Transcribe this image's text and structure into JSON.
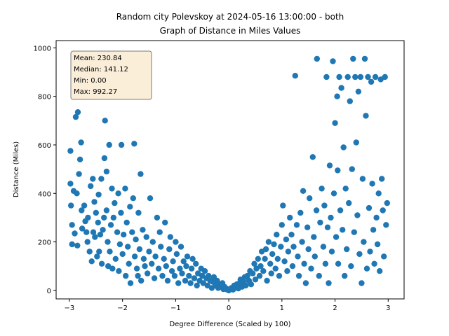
{
  "chart_data": {
    "type": "scatter",
    "title_line1": "Random city Polevskoy at 2024-05-16 13:00:00  - both",
    "title_line2": "Graph of Distance in Miles Values",
    "xlabel": "Degree Difference (Scaled by 100)",
    "ylabel": "Distance (Miles)",
    "xlim": [
      -3.25,
      3.3
    ],
    "ylim": [
      -35,
      1030
    ],
    "x_ticks": [
      -3,
      -2,
      -1,
      0,
      1,
      2,
      3
    ],
    "y_ticks": [
      0,
      200,
      400,
      600,
      800,
      1000
    ],
    "grid": false,
    "point_color": "#1f77b4",
    "stats_box": {
      "mean": "Mean: 230.84",
      "median": "Median: 141.12",
      "min": "Min: 0.00",
      "max": "Max: 992.27",
      "background": "#f5deb3",
      "placement": "top-left"
    },
    "points": [
      [
        -2.98,
        575
      ],
      [
        -2.98,
        440
      ],
      [
        -2.97,
        350
      ],
      [
        -2.95,
        270
      ],
      [
        -2.95,
        190
      ],
      [
        -2.92,
        410
      ],
      [
        -2.9,
        235
      ],
      [
        -2.88,
        715
      ],
      [
        -2.86,
        400
      ],
      [
        -2.85,
        185
      ],
      [
        -2.84,
        735
      ],
      [
        -2.82,
        480
      ],
      [
        -2.8,
        540
      ],
      [
        -2.78,
        610
      ],
      [
        -2.77,
        330
      ],
      [
        -2.76,
        255
      ],
      [
        -2.72,
        350
      ],
      [
        -2.7,
        285
      ],
      [
        -2.68,
        240
      ],
      [
        -2.66,
        200
      ],
      [
        -2.65,
        300
      ],
      [
        -2.62,
        160
      ],
      [
        -2.6,
        430
      ],
      [
        -2.58,
        120
      ],
      [
        -2.56,
        460
      ],
      [
        -2.55,
        240
      ],
      [
        -2.53,
        365
      ],
      [
        -2.52,
        220
      ],
      [
        -2.5,
        320
      ],
      [
        -2.48,
        140
      ],
      [
        -2.46,
        280
      ],
      [
        -2.45,
        395
      ],
      [
        -2.44,
        160
      ],
      [
        -2.42,
        230
      ],
      [
        -2.4,
        460
      ],
      [
        -2.39,
        110
      ],
      [
        -2.37,
        250
      ],
      [
        -2.35,
        300
      ],
      [
        -2.34,
        545
      ],
      [
        -2.33,
        700
      ],
      [
        -2.3,
        490
      ],
      [
        -2.3,
        330
      ],
      [
        -2.28,
        200
      ],
      [
        -2.27,
        100
      ],
      [
        -2.25,
        600
      ],
      [
        -2.24,
        160
      ],
      [
        -2.22,
        270
      ],
      [
        -2.2,
        420
      ],
      [
        -2.19,
        90
      ],
      [
        -2.17,
        300
      ],
      [
        -2.15,
        360
      ],
      [
        -2.13,
        130
      ],
      [
        -2.1,
        240
      ],
      [
        -2.08,
        400
      ],
      [
        -2.07,
        80
      ],
      [
        -2.05,
        190
      ],
      [
        -2.03,
        320
      ],
      [
        -2.02,
        600
      ],
      [
        -2.0,
        150
      ],
      [
        -1.98,
        230
      ],
      [
        -1.95,
        420
      ],
      [
        -1.94,
        60
      ],
      [
        -1.92,
        280
      ],
      [
        -1.9,
        180
      ],
      [
        -1.88,
        110
      ],
      [
        -1.86,
        345
      ],
      [
        -1.85,
        30
      ],
      [
        -1.82,
        240
      ],
      [
        -1.8,
        380
      ],
      [
        -1.78,
        605
      ],
      [
        -1.77,
        140
      ],
      [
        -1.75,
        210
      ],
      [
        -1.73,
        90
      ],
      [
        -1.71,
        60
      ],
      [
        -1.7,
        320
      ],
      [
        -1.68,
        170
      ],
      [
        -1.66,
        480
      ],
      [
        -1.65,
        40
      ],
      [
        -1.62,
        250
      ],
      [
        -1.6,
        130
      ],
      [
        -1.58,
        100
      ],
      [
        -1.55,
        220
      ],
      [
        -1.53,
        70
      ],
      [
        -1.5,
        160
      ],
      [
        -1.48,
        380
      ],
      [
        -1.45,
        110
      ],
      [
        -1.43,
        200
      ],
      [
        -1.4,
        50
      ],
      [
        -1.38,
        140
      ],
      [
        -1.35,
        300
      ],
      [
        -1.32,
        90
      ],
      [
        -1.3,
        240
      ],
      [
        -1.28,
        180
      ],
      [
        -1.25,
        60
      ],
      [
        -1.22,
        130
      ],
      [
        -1.2,
        280
      ],
      [
        -1.18,
        100
      ],
      [
        -1.15,
        40
      ],
      [
        -1.12,
        170
      ],
      [
        -1.1,
        220
      ],
      [
        -1.07,
        80
      ],
      [
        -1.05,
        120
      ],
      [
        -1.02,
        60
      ],
      [
        -1.0,
        200
      ],
      [
        -0.98,
        150
      ],
      [
        -0.95,
        30
      ],
      [
        -0.92,
        90
      ],
      [
        -0.9,
        180
      ],
      [
        -0.88,
        70
      ],
      [
        -0.85,
        120
      ],
      [
        -0.82,
        40
      ],
      [
        -0.8,
        100
      ],
      [
        -0.78,
        140
      ],
      [
        -0.75,
        60
      ],
      [
        -0.72,
        30
      ],
      [
        -0.7,
        90
      ],
      [
        -0.68,
        130
      ],
      [
        -0.65,
        50
      ],
      [
        -0.62,
        110
      ],
      [
        -0.6,
        20
      ],
      [
        -0.58,
        70
      ],
      [
        -0.55,
        40
      ],
      [
        -0.52,
        90
      ],
      [
        -0.5,
        60
      ],
      [
        -0.48,
        30
      ],
      [
        -0.45,
        80
      ],
      [
        -0.42,
        50
      ],
      [
        -0.4,
        20
      ],
      [
        -0.38,
        60
      ],
      [
        -0.35,
        40
      ],
      [
        -0.32,
        10
      ],
      [
        -0.3,
        35
      ],
      [
        -0.28,
        55
      ],
      [
        -0.25,
        20
      ],
      [
        -0.22,
        40
      ],
      [
        -0.2,
        10
      ],
      [
        -0.18,
        25
      ],
      [
        -0.15,
        15
      ],
      [
        -0.12,
        30
      ],
      [
        -0.1,
        5
      ],
      [
        -0.08,
        15
      ],
      [
        -0.05,
        8
      ],
      [
        -0.03,
        3
      ],
      [
        0.0,
        0
      ],
      [
        0.02,
        5
      ],
      [
        0.05,
        10
      ],
      [
        0.08,
        3
      ],
      [
        0.1,
        20
      ],
      [
        0.12,
        12
      ],
      [
        0.15,
        25
      ],
      [
        0.18,
        8
      ],
      [
        0.2,
        30
      ],
      [
        0.22,
        45
      ],
      [
        0.25,
        15
      ],
      [
        0.28,
        35
      ],
      [
        0.3,
        55
      ],
      [
        0.32,
        20
      ],
      [
        0.35,
        60
      ],
      [
        0.38,
        40
      ],
      [
        0.4,
        80
      ],
      [
        0.42,
        25
      ],
      [
        0.45,
        70
      ],
      [
        0.48,
        110
      ],
      [
        0.5,
        45
      ],
      [
        0.52,
        90
      ],
      [
        0.55,
        130
      ],
      [
        0.58,
        60
      ],
      [
        0.6,
        100
      ],
      [
        0.62,
        160
      ],
      [
        0.65,
        80
      ],
      [
        0.68,
        130
      ],
      [
        0.7,
        170
      ],
      [
        0.72,
        40
      ],
      [
        0.75,
        200
      ],
      [
        0.78,
        110
      ],
      [
        0.8,
        70
      ],
      [
        0.82,
        150
      ],
      [
        0.85,
        190
      ],
      [
        0.88,
        90
      ],
      [
        0.9,
        230
      ],
      [
        0.92,
        130
      ],
      [
        0.95,
        60
      ],
      [
        0.98,
        180
      ],
      [
        1.0,
        270
      ],
      [
        1.02,
        350
      ],
      [
        1.05,
        120
      ],
      [
        1.08,
        210
      ],
      [
        1.1,
        80
      ],
      [
        1.12,
        160
      ],
      [
        1.15,
        300
      ],
      [
        1.18,
        230
      ],
      [
        1.2,
        100
      ],
      [
        1.22,
        180
      ],
      [
        1.25,
        885
      ],
      [
        1.28,
        270
      ],
      [
        1.3,
        140
      ],
      [
        1.32,
        60
      ],
      [
        1.35,
        320
      ],
      [
        1.38,
        200
      ],
      [
        1.4,
        410
      ],
      [
        1.42,
        110
      ],
      [
        1.45,
        30
      ],
      [
        1.48,
        260
      ],
      [
        1.5,
        170
      ],
      [
        1.52,
        380
      ],
      [
        1.55,
        90
      ],
      [
        1.58,
        550
      ],
      [
        1.6,
        220
      ],
      [
        1.62,
        140
      ],
      [
        1.65,
        330
      ],
      [
        1.66,
        955
      ],
      [
        1.7,
        60
      ],
      [
        1.72,
        280
      ],
      [
        1.75,
        420
      ],
      [
        1.78,
        180
      ],
      [
        1.8,
        350
      ],
      [
        1.82,
        110
      ],
      [
        1.84,
        880
      ],
      [
        1.86,
        260
      ],
      [
        1.88,
        30
      ],
      [
        1.9,
        515
      ],
      [
        1.92,
        300
      ],
      [
        1.94,
        160
      ],
      [
        1.96,
        945
      ],
      [
        1.98,
        400
      ],
      [
        2.0,
        690
      ],
      [
        2.02,
        220
      ],
      [
        2.04,
        800
      ],
      [
        2.05,
        495
      ],
      [
        2.06,
        110
      ],
      [
        2.08,
        880
      ],
      [
        2.1,
        330
      ],
      [
        2.12,
        835
      ],
      [
        2.14,
        250
      ],
      [
        2.16,
        590
      ],
      [
        2.18,
        60
      ],
      [
        2.2,
        420
      ],
      [
        2.22,
        170
      ],
      [
        2.24,
        880
      ],
      [
        2.26,
        360
      ],
      [
        2.28,
        780
      ],
      [
        2.3,
        100
      ],
      [
        2.32,
        500
      ],
      [
        2.34,
        955
      ],
      [
        2.36,
        240
      ],
      [
        2.38,
        880
      ],
      [
        2.4,
        610
      ],
      [
        2.42,
        310
      ],
      [
        2.44,
        820
      ],
      [
        2.46,
        150
      ],
      [
        2.48,
        880
      ],
      [
        2.5,
        30
      ],
      [
        2.52,
        460
      ],
      [
        2.54,
        200
      ],
      [
        2.56,
        955
      ],
      [
        2.58,
        720
      ],
      [
        2.6,
        90
      ],
      [
        2.62,
        880
      ],
      [
        2.64,
        340
      ],
      [
        2.66,
        160
      ],
      [
        2.68,
        860
      ],
      [
        2.7,
        440
      ],
      [
        2.72,
        250
      ],
      [
        2.74,
        110
      ],
      [
        2.76,
        880
      ],
      [
        2.78,
        300
      ],
      [
        2.8,
        190
      ],
      [
        2.82,
        400
      ],
      [
        2.84,
        80
      ],
      [
        2.86,
        870
      ],
      [
        2.88,
        460
      ],
      [
        2.9,
        330
      ],
      [
        2.92,
        140
      ],
      [
        2.94,
        880
      ],
      [
        2.96,
        270
      ],
      [
        2.98,
        360
      ]
    ]
  }
}
